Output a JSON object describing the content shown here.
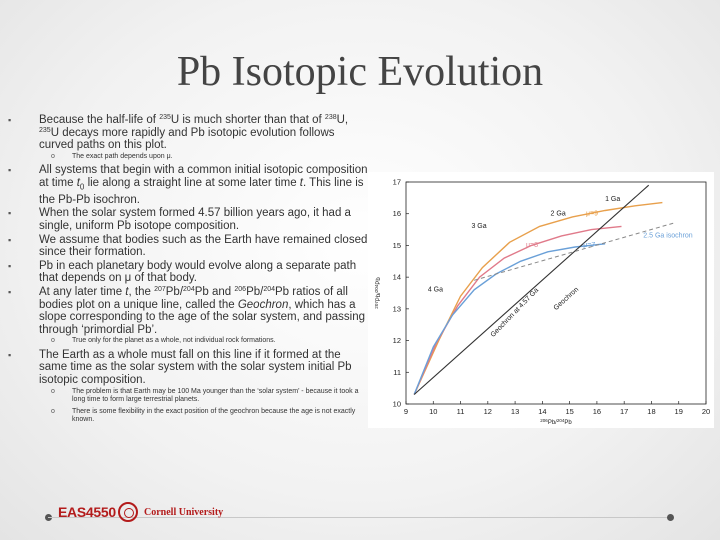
{
  "title": "Pb Isotopic Evolution",
  "bullets": [
    {
      "level": 1,
      "parts": [
        {
          "t": "Because the half-life of "
        },
        {
          "sup": "235"
        },
        {
          "t": "U is much shorter than that of "
        },
        {
          "sup": "238"
        },
        {
          "t": "U, "
        },
        {
          "sup": "235"
        },
        {
          "t": "U decays more rapidly and Pb isotopic evolution follows curved paths on this plot."
        }
      ]
    },
    {
      "level": 2,
      "parts": [
        {
          "t": "The exact path depends upon μ."
        }
      ]
    },
    {
      "level": 1,
      "parts": [
        {
          "t": "All systems that begin with a common initial isotopic composition at time "
        },
        {
          "i": "t"
        },
        {
          "sub": "0"
        },
        {
          "t": " lie along a straight line at some later time "
        },
        {
          "i": "t"
        },
        {
          "t": ". This line is the Pb-Pb isochron."
        }
      ]
    },
    {
      "level": 1,
      "parts": [
        {
          "t": "When the solar system formed 4.57 billion years ago, it had a single, uniform Pb isotope composition."
        }
      ]
    },
    {
      "level": 1,
      "parts": [
        {
          "t": "We assume that bodies such as the Earth have remained closed since their formation."
        }
      ]
    },
    {
      "level": 1,
      "parts": [
        {
          "t": "Pb in each planetary body would evolve along a separate path that depends on μ of that body."
        }
      ]
    },
    {
      "level": 1,
      "parts": [
        {
          "t": "At any later time "
        },
        {
          "i": "t"
        },
        {
          "t": ", the "
        },
        {
          "sup": "207"
        },
        {
          "t": "Pb/"
        },
        {
          "sup": "204"
        },
        {
          "t": "Pb and "
        },
        {
          "sup": "206"
        },
        {
          "t": "Pb/"
        },
        {
          "sup": "204"
        },
        {
          "t": "Pb ratios of all bodies plot on a unique line, called the "
        },
        {
          "i": "Geochron"
        },
        {
          "t": ", which has a slope corresponding to the age of the solar system, and passing through ‘primordial Pb’."
        }
      ]
    },
    {
      "level": 2,
      "parts": [
        {
          "t": "True only for the planet as a whole, not individual rock formations."
        }
      ]
    },
    {
      "level": 1,
      "parts": [
        {
          "t": "The Earth as a whole must fall on this line if it formed at the same time as the solar system with the solar system initial Pb isotopic composition."
        }
      ]
    },
    {
      "level": 2,
      "parts": [
        {
          "t": "The problem is that Earth may be 100 Ma younger than the ‘solar system’ - because it took a long time to form large terrestrial planets."
        }
      ]
    },
    {
      "level": 2,
      "parts": [
        {
          "t": "There is some flexibility in the exact position of the geochron because the age is not exactly known."
        }
      ]
    }
  ],
  "chart_data": {
    "type": "line",
    "xlabel_parts": [
      {
        "sup": "206"
      },
      {
        "t": "Pb/"
      },
      {
        "sup": "204"
      },
      {
        "t": "Pb"
      }
    ],
    "ylabel_parts": [
      {
        "sup": "207"
      },
      {
        "t": "Pb/"
      },
      {
        "sup": "204"
      },
      {
        "t": "Pb"
      }
    ],
    "xlim": [
      9,
      20
    ],
    "ylim": [
      10,
      17
    ],
    "x_ticks": [
      9,
      10,
      11,
      12,
      13,
      14,
      15,
      16,
      17,
      18,
      19,
      20
    ],
    "y_ticks": [
      10,
      11,
      12,
      13,
      14,
      15,
      16,
      17
    ],
    "grid": false,
    "colors": {
      "mu9": "#e8a04c",
      "mu8": "#e07a8a",
      "mu7": "#6aa0d8",
      "isochron": "#888888",
      "geochron": "#333333"
    },
    "series": [
      {
        "name": "μ=9",
        "x": [
          9.3,
          10.2,
          11.0,
          11.8,
          12.8,
          13.9,
          15.1,
          16.3,
          17.4,
          18.4
        ],
        "y": [
          10.3,
          12.0,
          13.4,
          14.3,
          15.1,
          15.6,
          15.9,
          16.1,
          16.25,
          16.35
        ]
      },
      {
        "name": "μ=8",
        "x": [
          9.3,
          10.1,
          10.9,
          11.7,
          12.6,
          13.6,
          14.7,
          15.8,
          16.9
        ],
        "y": [
          10.3,
          11.9,
          13.1,
          14.0,
          14.6,
          15.0,
          15.3,
          15.5,
          15.6
        ]
      },
      {
        "name": "μ=7",
        "x": [
          9.3,
          10.0,
          10.7,
          11.5,
          12.3,
          13.2,
          14.2,
          15.2,
          16.3
        ],
        "y": [
          10.3,
          11.8,
          12.8,
          13.6,
          14.1,
          14.5,
          14.8,
          14.95,
          15.05
        ]
      },
      {
        "name": "Geochron",
        "x": [
          9.3,
          17.9
        ],
        "y": [
          10.3,
          16.9
        ]
      },
      {
        "name": "2.5 Ga isochron",
        "x": [
          11.5,
          18.8
        ],
        "y": [
          13.9,
          15.7
        ]
      }
    ],
    "annotations": [
      {
        "text": "4 Ga",
        "x": 9.8,
        "y": 13.55
      },
      {
        "text": "3 Ga",
        "x": 11.4,
        "y": 15.55
      },
      {
        "text": "2 Ga",
        "x": 14.3,
        "y": 15.95
      },
      {
        "text": "1 Ga",
        "x": 16.3,
        "y": 16.4
      },
      {
        "text": "μ=9",
        "x": 15.6,
        "y": 15.95
      },
      {
        "text": "μ=8",
        "x": 13.4,
        "y": 14.95
      },
      {
        "text": "μ=7",
        "x": 15.5,
        "y": 14.95
      },
      {
        "text": "2.5 Ga isochron",
        "x": 17.7,
        "y": 15.25
      },
      {
        "text": "Geochron at 4.57 Ga",
        "x": 12.2,
        "y": 12.1,
        "rotate": -46
      },
      {
        "text": "Geochron",
        "x": 14.5,
        "y": 12.95,
        "rotate": -42
      }
    ]
  },
  "footer": {
    "course": "EAS4550",
    "university": "Cornell University"
  }
}
